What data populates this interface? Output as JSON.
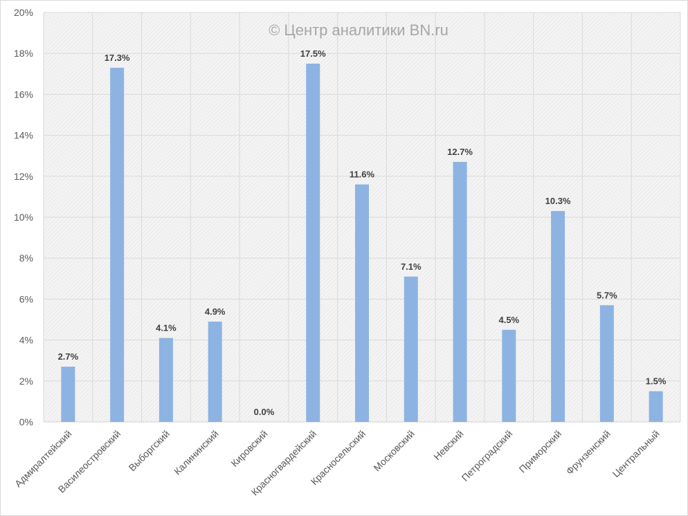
{
  "chart_data": {
    "type": "bar",
    "title": "",
    "watermark": "© Центр аналитики BN.ru",
    "xlabel": "",
    "ylabel": "",
    "ylim": [
      0,
      20
    ],
    "y_ticks": [
      "0%",
      "2%",
      "4%",
      "6%",
      "8%",
      "10%",
      "12%",
      "14%",
      "16%",
      "18%",
      "20%"
    ],
    "grid": true,
    "categories": [
      "Адмиралтейский",
      "Василеостровский",
      "Выборгский",
      "Калининский",
      "Кировский",
      "Красногвардейский",
      "Красносельский",
      "Московский",
      "Невский",
      "Петроградский",
      "Приморский",
      "Фрунзенский",
      "Центральный"
    ],
    "values": [
      2.7,
      17.3,
      4.1,
      4.9,
      0.0,
      17.5,
      11.6,
      7.1,
      12.7,
      4.5,
      10.3,
      5.7,
      1.5
    ],
    "data_labels": [
      "2.7%",
      "17.3%",
      "4.1%",
      "4.9%",
      "0.0%",
      "17.5%",
      "11.6%",
      "7.1%",
      "12.7%",
      "4.5%",
      "10.3%",
      "5.7%",
      "1.5%"
    ],
    "bar_color": "#8db3e2"
  }
}
